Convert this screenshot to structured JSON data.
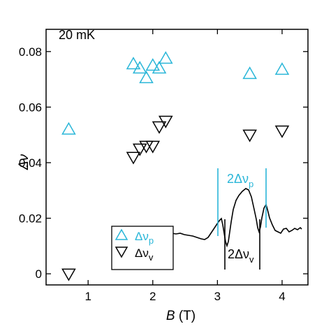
{
  "chart_data": {
    "type": "scatter",
    "annotation_temp": "20 mK",
    "xlabel": {
      "symbol": "B",
      "unit": " (T)"
    },
    "ylabel": "Δν",
    "xlim": [
      0.35,
      4.4
    ],
    "ylim": [
      -0.004,
      0.088
    ],
    "x_ticks": [
      "1",
      "2",
      "3",
      "4"
    ],
    "y_ticks": [
      "0",
      "0.02",
      "0.04",
      "0.06",
      "0.08"
    ],
    "x_tick_values": [
      1,
      2,
      3,
      4
    ],
    "y_tick_values": [
      0,
      0.02,
      0.04,
      0.06,
      0.08
    ],
    "series": [
      {
        "name": "Δνp",
        "name_base": "Δν",
        "name_sub": "p",
        "marker": "triangle-up",
        "color": "#29b6d8",
        "points": [
          [
            0.7,
            0.052
          ],
          [
            1.7,
            0.0755
          ],
          [
            1.8,
            0.074
          ],
          [
            1.9,
            0.0705
          ],
          [
            2.0,
            0.075
          ],
          [
            2.1,
            0.074
          ],
          [
            2.2,
            0.0775
          ],
          [
            3.5,
            0.072
          ],
          [
            4.0,
            0.0735
          ]
        ]
      },
      {
        "name": "Δνv",
        "name_base": "Δν",
        "name_sub": "v",
        "marker": "triangle-down",
        "color": "#000000",
        "points": [
          [
            0.7,
            0.0
          ],
          [
            1.7,
            0.042
          ],
          [
            1.8,
            0.045
          ],
          [
            1.9,
            0.046
          ],
          [
            2.0,
            0.046
          ],
          [
            2.1,
            0.053
          ],
          [
            2.2,
            0.055
          ],
          [
            3.5,
            0.05
          ],
          [
            4.0,
            0.0515
          ]
        ]
      }
    ],
    "inset_annotations": {
      "top": {
        "prefix": "2Δν",
        "sub": "p",
        "color": "#29b6d8"
      },
      "bottom": {
        "prefix": "2Δν",
        "sub": "v",
        "color": "#000000"
      }
    },
    "legend_position": "bottom-left",
    "grid": false
  }
}
